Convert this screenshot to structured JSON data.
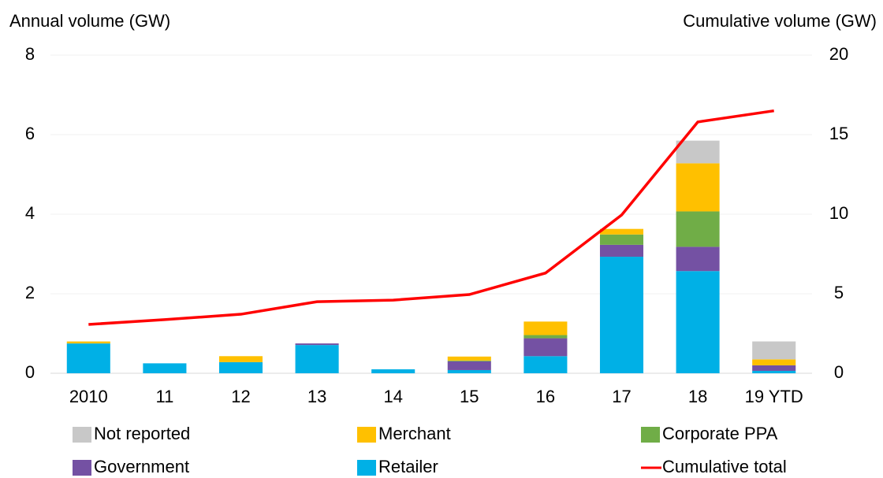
{
  "chart_data": {
    "type": "bar",
    "y_label": "Annual volume (GW)",
    "y2_label": "Cumulative volume (GW)",
    "categories": [
      "2010",
      "11",
      "12",
      "13",
      "14",
      "15",
      "16",
      "17",
      "18",
      "19 YTD"
    ],
    "stacked": true,
    "grid": true,
    "series": [
      {
        "name": "Retailer",
        "color": "#00b0e6",
        "values": [
          0.75,
          0.25,
          0.28,
          0.71,
          0.1,
          0.08,
          0.43,
          2.93,
          2.57,
          0.06
        ]
      },
      {
        "name": "Government",
        "color": "#7451a3",
        "values": [
          0,
          0,
          0,
          0.04,
          0,
          0.22,
          0.45,
          0.3,
          0.61,
          0.14
        ]
      },
      {
        "name": "Corporate PPA",
        "color": "#70ad47",
        "values": [
          0,
          0,
          0,
          0,
          0,
          0.02,
          0.08,
          0.26,
          0.89,
          0
        ]
      },
      {
        "name": "Merchant",
        "color": "#ffc000",
        "values": [
          0.05,
          0,
          0.15,
          0,
          0,
          0.1,
          0.34,
          0.14,
          1.21,
          0.15
        ]
      },
      {
        "name": "Not reported",
        "color": "#c8c8c8",
        "values": [
          0,
          0,
          0,
          0,
          0,
          0,
          0,
          0,
          0.57,
          0.45
        ]
      },
      {
        "name": "Cumulative total",
        "color": "#ff0000",
        "type": "line",
        "axis": "y2",
        "values": [
          3.07,
          3.37,
          3.71,
          4.5,
          4.6,
          4.95,
          6.3,
          9.95,
          15.8,
          16.5
        ]
      }
    ],
    "ylim": [
      0,
      8
    ],
    "yticks": [
      0,
      2,
      4,
      6,
      8
    ],
    "y2lim": [
      0,
      20
    ],
    "y2ticks": [
      0,
      5,
      10,
      15,
      20
    ]
  }
}
